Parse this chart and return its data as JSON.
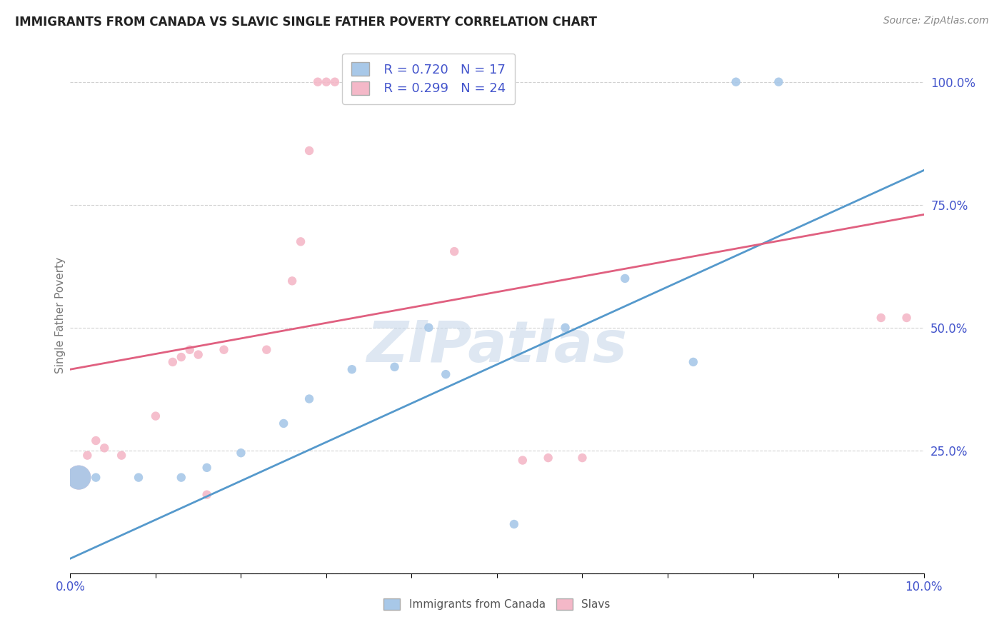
{
  "title": "IMMIGRANTS FROM CANADA VS SLAVIC SINGLE FATHER POVERTY CORRELATION CHART",
  "source": "Source: ZipAtlas.com",
  "ylabel": "Single Father Poverty",
  "legend_label_blue": "Immigrants from Canada",
  "legend_label_pink": "Slavs",
  "blue_color": "#a8c8e8",
  "pink_color": "#f4b8c8",
  "blue_line_color": "#5599cc",
  "pink_line_color": "#e06080",
  "r_n_color": "#4455cc",
  "watermark_color": "#c8d8ea",
  "blue_points": [
    [
      0.001,
      0.195
    ],
    [
      0.003,
      0.195
    ],
    [
      0.008,
      0.195
    ],
    [
      0.013,
      0.195
    ],
    [
      0.016,
      0.215
    ],
    [
      0.02,
      0.245
    ],
    [
      0.025,
      0.305
    ],
    [
      0.028,
      0.355
    ],
    [
      0.033,
      0.415
    ],
    [
      0.038,
      0.42
    ],
    [
      0.042,
      0.5
    ],
    [
      0.044,
      0.405
    ],
    [
      0.052,
      0.1
    ],
    [
      0.058,
      0.5
    ],
    [
      0.065,
      0.6
    ],
    [
      0.073,
      0.43
    ],
    [
      0.078,
      1.0
    ],
    [
      0.083,
      1.0
    ]
  ],
  "blue_sizes": [
    600,
    80,
    80,
    80,
    80,
    80,
    80,
    80,
    80,
    80,
    80,
    80,
    80,
    80,
    80,
    80,
    80,
    80
  ],
  "pink_points": [
    [
      0.001,
      0.195
    ],
    [
      0.002,
      0.24
    ],
    [
      0.003,
      0.27
    ],
    [
      0.004,
      0.255
    ],
    [
      0.006,
      0.24
    ],
    [
      0.01,
      0.32
    ],
    [
      0.012,
      0.43
    ],
    [
      0.013,
      0.44
    ],
    [
      0.014,
      0.455
    ],
    [
      0.015,
      0.445
    ],
    [
      0.016,
      0.16
    ],
    [
      0.018,
      0.455
    ],
    [
      0.023,
      0.455
    ],
    [
      0.026,
      0.595
    ],
    [
      0.027,
      0.675
    ],
    [
      0.028,
      0.86
    ],
    [
      0.029,
      1.0
    ],
    [
      0.03,
      1.0
    ],
    [
      0.031,
      1.0
    ],
    [
      0.045,
      0.655
    ],
    [
      0.053,
      0.23
    ],
    [
      0.056,
      0.235
    ],
    [
      0.06,
      0.235
    ],
    [
      0.095,
      0.52
    ],
    [
      0.098,
      0.52
    ]
  ],
  "pink_sizes": [
    600,
    80,
    80,
    80,
    80,
    80,
    80,
    80,
    80,
    80,
    80,
    80,
    80,
    80,
    80,
    80,
    80,
    80,
    80,
    80,
    80,
    80,
    80,
    80,
    80
  ],
  "xlim": [
    0.0,
    0.1
  ],
  "ylim": [
    0.0,
    1.05
  ],
  "xticks": [
    0.0,
    0.01,
    0.02,
    0.03,
    0.04,
    0.05,
    0.06,
    0.07,
    0.08,
    0.09,
    0.1
  ],
  "yticks": [
    0.0,
    0.25,
    0.5,
    0.75,
    1.0
  ],
  "ytick_labels": [
    "",
    "25.0%",
    "50.0%",
    "75.0%",
    "100.0%"
  ],
  "blue_line_x": [
    0.0,
    0.1
  ],
  "blue_line_y": [
    0.03,
    0.82
  ],
  "pink_line_x": [
    0.0,
    0.1
  ],
  "pink_line_y": [
    0.415,
    0.73
  ]
}
